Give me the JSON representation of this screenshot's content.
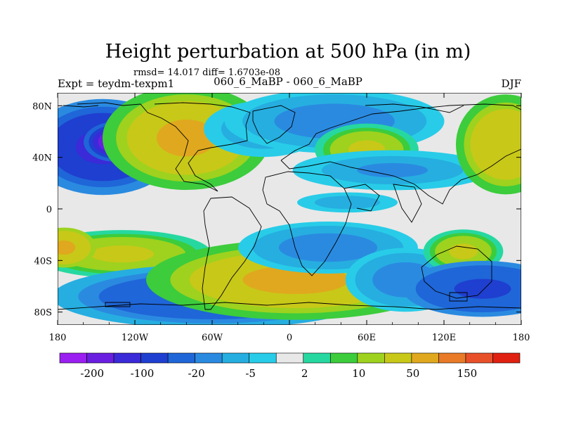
{
  "chart_data": {
    "type": "heatmap",
    "title": "Height perturbation at 500 hPa (in m)",
    "stats_text": "rmsd= 14.017 diff= 1.6703e-08",
    "left_label": "Expt = teydm-texpm1",
    "center_label": "060_6_MaBP - 060_6_MaBP",
    "right_label": "DJF",
    "x_ticks": [
      "180",
      "120W",
      "60W",
      "0",
      "60E",
      "120E",
      "180"
    ],
    "x_tick_values": [
      -180,
      -120,
      -60,
      0,
      60,
      120,
      180
    ],
    "y_ticks": [
      "80N",
      "40N",
      "0",
      "40S",
      "80S"
    ],
    "y_tick_values": [
      80,
      40,
      0,
      -40,
      -80
    ],
    "xlim": [
      -180,
      180
    ],
    "ylim": [
      -90,
      90
    ],
    "colorbar": {
      "colors": [
        "#9a1ff0",
        "#6a1fe0",
        "#3a2ad8",
        "#1f3fd0",
        "#1f66d8",
        "#2a8ae0",
        "#26aee0",
        "#28cce8",
        "#e8e8e8",
        "#26d8a0",
        "#3ccc3c",
        "#9ed21e",
        "#c8c818",
        "#e0a81e",
        "#e87a28",
        "#e8502a",
        "#e02010"
      ],
      "labels": [
        "-200",
        "-100",
        "-20",
        "-5",
        "2",
        "10",
        "50",
        "150"
      ]
    },
    "field_blobs": [
      {
        "lon": -145,
        "lat": 48,
        "rx": 38,
        "ry": 24,
        "level": -75
      },
      {
        "lon": -135,
        "lat": 52,
        "rx": 16,
        "ry": 10,
        "level": -150
      },
      {
        "lon": -80,
        "lat": 55,
        "rx": 42,
        "ry": 26,
        "level": 40
      },
      {
        "lon": -20,
        "lat": 62,
        "rx": 30,
        "ry": 14,
        "level": -8
      },
      {
        "lon": 35,
        "lat": 68,
        "rx": 55,
        "ry": 16,
        "level": -12
      },
      {
        "lon": 60,
        "lat": 46,
        "rx": 26,
        "ry": 13,
        "level": 18
      },
      {
        "lon": 80,
        "lat": 30,
        "rx": 50,
        "ry": 10,
        "level": -8
      },
      {
        "lon": 168,
        "lat": 50,
        "rx": 25,
        "ry": 25,
        "level": 30
      },
      {
        "lon": -130,
        "lat": -35,
        "rx": 45,
        "ry": 12,
        "level": 20
      },
      {
        "lon": -175,
        "lat": -30,
        "rx": 16,
        "ry": 10,
        "level": 50
      },
      {
        "lon": -60,
        "lat": -68,
        "rx": 80,
        "ry": 16,
        "level": -30
      },
      {
        "lon": 5,
        "lat": -55,
        "rx": 75,
        "ry": 20,
        "level": 35
      },
      {
        "lon": 30,
        "lat": -30,
        "rx": 45,
        "ry": 13,
        "level": -12
      },
      {
        "lon": 90,
        "lat": -55,
        "rx": 30,
        "ry": 16,
        "level": -10
      },
      {
        "lon": 135,
        "lat": -33,
        "rx": 20,
        "ry": 11,
        "level": 18
      },
      {
        "lon": 150,
        "lat": -62,
        "rx": 40,
        "ry": 14,
        "level": -40
      },
      {
        "lon": 45,
        "lat": 5,
        "rx": 30,
        "ry": 6,
        "level": -6
      }
    ]
  }
}
